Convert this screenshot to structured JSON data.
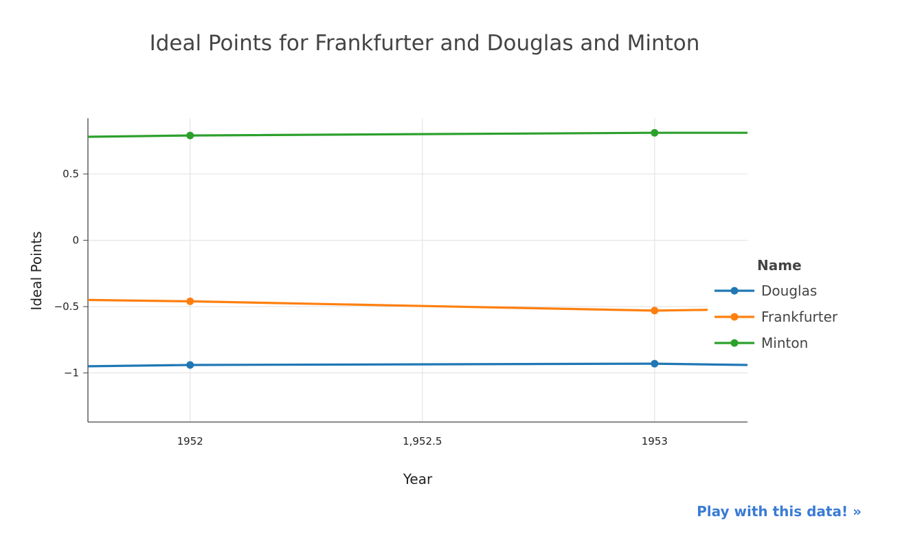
{
  "chart_data": {
    "type": "line",
    "title": "Ideal Points for Frankfurter and Douglas and Minton",
    "xlabel": "Year",
    "ylabel": "Ideal Points",
    "x": [
      1951.78,
      1952,
      1953,
      1953.2
    ],
    "xlim": [
      1951.78,
      1953.2
    ],
    "ylim": [
      -1.37,
      0.92
    ],
    "xticks": [
      1952,
      1952.5,
      1953
    ],
    "xtick_labels": [
      "1952",
      "1,952.5",
      "1953"
    ],
    "yticks": [
      -1,
      -0.5,
      0,
      0.5
    ],
    "ytick_labels": [
      "−1",
      "−0.5",
      "0",
      "0.5"
    ],
    "grid": true,
    "legend_title": "Name",
    "legend_position": "right",
    "series": [
      {
        "name": "Douglas",
        "color": "#1f77b4",
        "line": [
          [
            1951.78,
            -0.95
          ],
          [
            1952,
            -0.94
          ],
          [
            1953,
            -0.93
          ],
          [
            1953.2,
            -0.94
          ]
        ],
        "markers": [
          [
            1952,
            -0.94
          ],
          [
            1953,
            -0.93
          ]
        ]
      },
      {
        "name": "Frankfurter",
        "color": "#ff7f0e",
        "line": [
          [
            1951.78,
            -0.45
          ],
          [
            1952,
            -0.46
          ],
          [
            1953,
            -0.53
          ],
          [
            1953.2,
            -0.52
          ]
        ],
        "markers": [
          [
            1952,
            -0.46
          ],
          [
            1953,
            -0.53
          ]
        ]
      },
      {
        "name": "Minton",
        "color": "#2ca02c",
        "line": [
          [
            1951.78,
            0.78
          ],
          [
            1952,
            0.79
          ],
          [
            1953,
            0.81
          ],
          [
            1953.2,
            0.81
          ]
        ],
        "markers": [
          [
            1952,
            0.79
          ],
          [
            1953,
            0.81
          ]
        ]
      }
    ]
  },
  "link": {
    "label": "Play with this data! »"
  }
}
